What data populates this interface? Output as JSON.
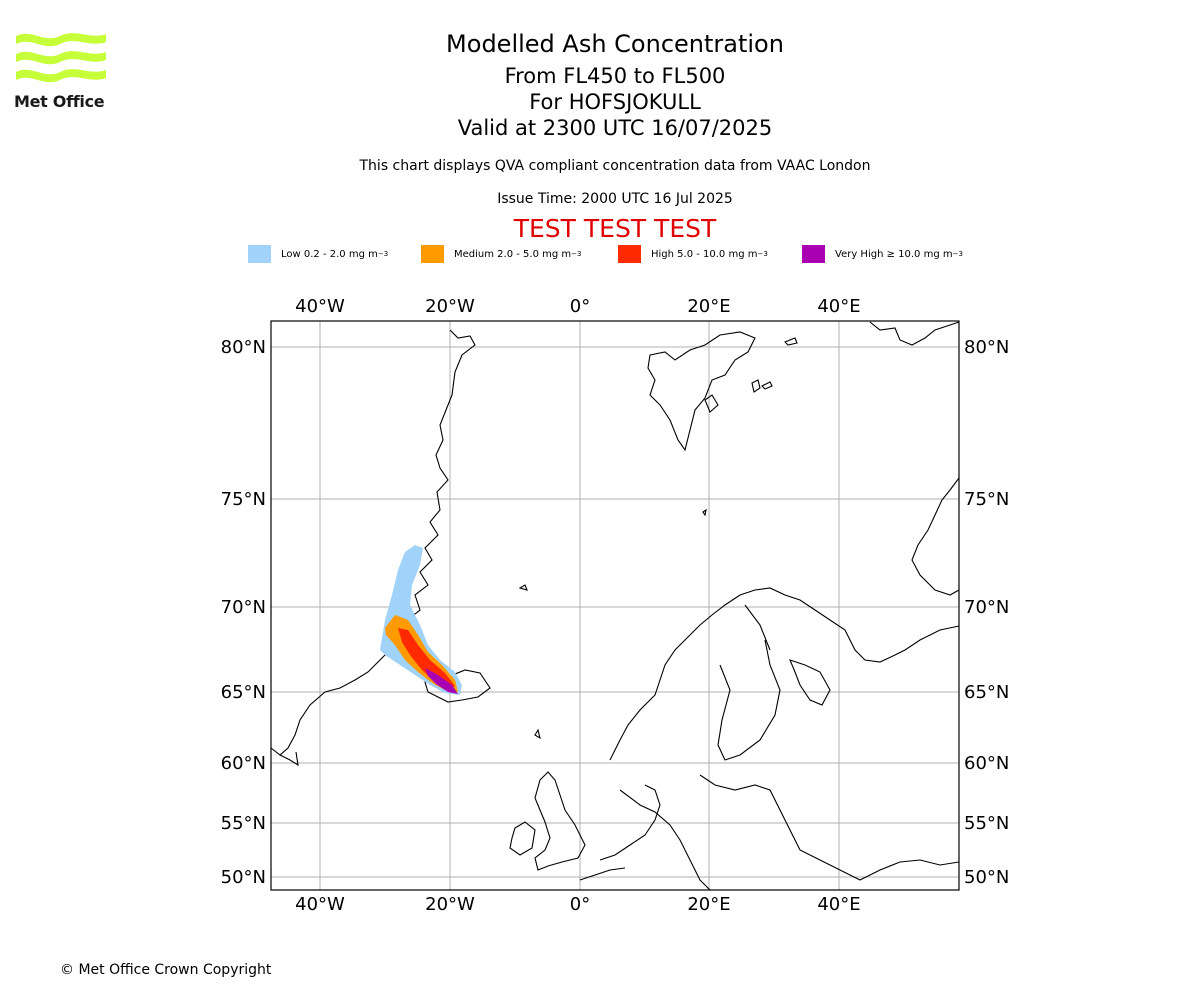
{
  "logo": {
    "text": "Met Office",
    "color": "#c6ff3a",
    "name": "met-office-logo"
  },
  "header": {
    "title": "Modelled Ash Concentration",
    "levels": "From FL450 to FL500",
    "volcano": "For HOFSJOKULL",
    "valid": "Valid at 2300 UTC 16/07/2025",
    "subtitle": "This chart displays QVA compliant concentration data from VAAC London",
    "issue": "Issue Time: 2000 UTC 16 Jul 2025",
    "test_banner": "TEST TEST TEST"
  },
  "legend": [
    {
      "label": "Low 0.2 - 2.0 mg m",
      "superscript": "−3",
      "color": "#a0d2fa"
    },
    {
      "label": "Medium 2.0 - 5.0 mg m",
      "superscript": "−3",
      "color": "#ff9a00"
    },
    {
      "label": "High 5.0 - 10.0 mg m",
      "superscript": "−3",
      "color": "#ff2a00"
    },
    {
      "label": "Very High ≥ 10.0 mg m",
      "superscript": "−3",
      "color": "#aa00b4"
    }
  ],
  "map": {
    "lon_labels": [
      "40°W",
      "20°W",
      "0°",
      "20°E",
      "40°E"
    ],
    "lat_labels": [
      "80°N",
      "75°N",
      "70°N",
      "65°N",
      "60°N",
      "55°N",
      "50°N"
    ],
    "grid_color": "#b0b0b0"
  },
  "footer": {
    "copyright": "© Met Office Crown Copyright"
  }
}
